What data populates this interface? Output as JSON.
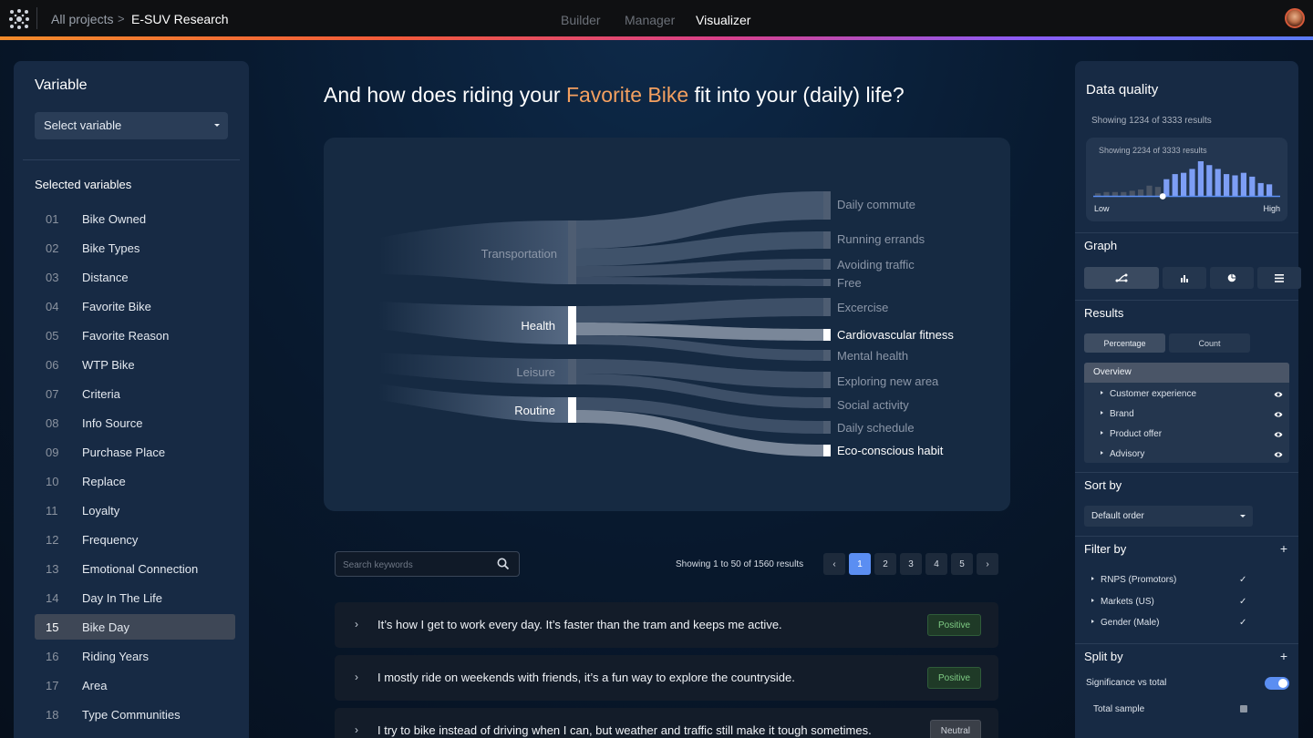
{
  "header": {
    "all_projects": "All projects",
    "separator": ">",
    "project": "E-SUV Research",
    "tabs": [
      {
        "label": "Builder",
        "active": false
      },
      {
        "label": "Manager",
        "active": false
      },
      {
        "label": "Visualizer",
        "active": true
      }
    ],
    "accent_gradient": [
      "#f28b2a",
      "#d8408a",
      "#8b5cf6",
      "#5b7cf6"
    ]
  },
  "left_panel": {
    "title": "Variable",
    "select_placeholder": "Select variable",
    "selected_title": "Selected variables",
    "items": [
      {
        "num": "01",
        "label": "Bike Owned"
      },
      {
        "num": "02",
        "label": "Bike Types"
      },
      {
        "num": "03",
        "label": "Distance"
      },
      {
        "num": "04",
        "label": "Favorite Bike"
      },
      {
        "num": "05",
        "label": "Favorite Reason"
      },
      {
        "num": "06",
        "label": "WTP Bike"
      },
      {
        "num": "07",
        "label": "Criteria"
      },
      {
        "num": "08",
        "label": "Info Source"
      },
      {
        "num": "09",
        "label": "Purchase Place"
      },
      {
        "num": "10",
        "label": "Replace"
      },
      {
        "num": "11",
        "label": "Loyalty"
      },
      {
        "num": "12",
        "label": "Frequency"
      },
      {
        "num": "13",
        "label": "Emotional Connection"
      },
      {
        "num": "14",
        "label": "Day In The Life"
      },
      {
        "num": "15",
        "label": "Bike Day",
        "selected": true
      },
      {
        "num": "16",
        "label": "Riding Years"
      },
      {
        "num": "17",
        "label": "Area"
      },
      {
        "num": "18",
        "label": "Type Communities"
      }
    ]
  },
  "question": {
    "prefix": "And how does riding your ",
    "highlight": "Favorite Bike",
    "suffix": " fit into your (daily) life?",
    "highlight_color": "#f4a060"
  },
  "sankey": {
    "sources": [
      {
        "label": "Transportation",
        "highlighted": false
      },
      {
        "label": "Health",
        "highlighted": true
      },
      {
        "label": "Leisure",
        "highlighted": false
      },
      {
        "label": "Routine",
        "highlighted": true
      }
    ],
    "targets": [
      {
        "label": "Daily commute",
        "highlighted": false
      },
      {
        "label": "Running errands",
        "highlighted": false
      },
      {
        "label": "Avoiding traffic",
        "highlighted": false
      },
      {
        "label": "Free",
        "highlighted": false
      },
      {
        "label": "Excercise",
        "highlighted": false
      },
      {
        "label": "Cardiovascular fitness",
        "highlighted": true
      },
      {
        "label": "Mental health",
        "highlighted": false
      },
      {
        "label": "Exploring new area",
        "highlighted": false
      },
      {
        "label": "Social activity",
        "highlighted": false
      },
      {
        "label": "Daily schedule",
        "highlighted": false
      },
      {
        "label": "Eco-conscious habit",
        "highlighted": true
      }
    ]
  },
  "results_bar": {
    "search_placeholder": "Search keywords",
    "showing": "Showing 1 to 50 of 1560 results",
    "pages": [
      "1",
      "2",
      "3",
      "4",
      "5"
    ],
    "active_page": "1",
    "prev": "‹",
    "next": "›"
  },
  "responses": [
    {
      "text": "It’s how I get to work every day. It’s faster than the tram and keeps me active.",
      "sentiment": "Positive",
      "kind": "pos"
    },
    {
      "text": "I mostly ride on weekends with friends, it’s a fun way to explore the countryside.",
      "sentiment": "Positive",
      "kind": "pos"
    },
    {
      "text": "I try to bike instead of driving when I can, but weather and traffic still make it tough sometimes.",
      "sentiment": "Neutral",
      "kind": "neu"
    }
  ],
  "right_panel": {
    "data_quality": {
      "title": "Data quality",
      "showing_outer": "Showing 1234 of 3333 results",
      "showing_inner": "Showing 2234 of 3333 results",
      "low": "Low",
      "high": "High",
      "histogram": [
        2,
        3,
        3,
        3,
        4,
        5,
        8,
        7,
        13,
        17,
        18,
        21,
        27,
        24,
        21,
        17,
        16,
        18,
        15,
        10,
        9
      ],
      "threshold_index": 8,
      "active_color": "#7d9ef5",
      "inactive_color": "#4a5566"
    },
    "graph": {
      "title": "Graph",
      "options": [
        "sankey-icon",
        "bar-chart-icon",
        "pie-chart-icon",
        "list-icon"
      ],
      "active": "sankey-icon"
    },
    "results": {
      "title": "Results",
      "modes": [
        "Percentage",
        "Count"
      ],
      "active_mode": "Percentage",
      "overview": "Overview",
      "items": [
        "Customer experience",
        "Brand",
        "Product offer",
        "Advisory"
      ]
    },
    "sort": {
      "title": "Sort by",
      "value": "Default order"
    },
    "filter": {
      "title": "Filter by",
      "add": "+",
      "items": [
        "RNPS (Promotors)",
        "Markets (US)",
        "Gender (Male)"
      ]
    },
    "split": {
      "title": "Split by",
      "add": "+",
      "significance": "Significance vs total",
      "significance_on": true,
      "total_sample": "Total sample",
      "total_sample_checked": true
    }
  }
}
